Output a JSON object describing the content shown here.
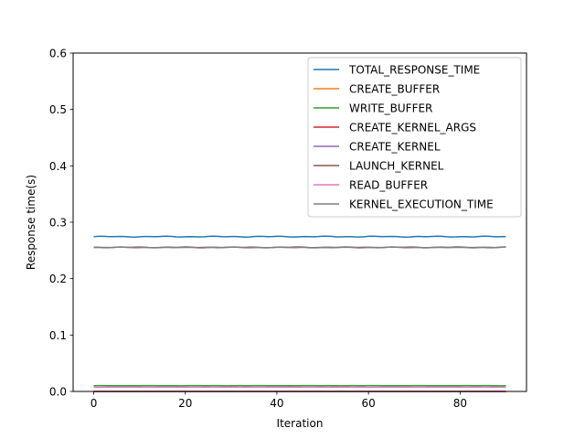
{
  "chart_data": {
    "type": "line",
    "title": "",
    "xlabel": "Iteration",
    "ylabel": "Response time(s)",
    "xlim": [
      -4.5,
      94.5
    ],
    "ylim": [
      0,
      0.6
    ],
    "x_ticks": [
      0,
      20,
      40,
      60,
      80
    ],
    "y_ticks": [
      0.0,
      0.1,
      0.2,
      0.3,
      0.4,
      0.5,
      0.6
    ],
    "x_tick_labels": [
      "0",
      "20",
      "40",
      "60",
      "80"
    ],
    "y_tick_labels": [
      "0.0",
      "0.1",
      "0.2",
      "0.3",
      "0.4",
      "0.5",
      "0.6"
    ],
    "grid": false,
    "legend_position": "top-right",
    "x_range": [
      0,
      90
    ],
    "series": [
      {
        "name": "TOTAL_RESPONSE_TIME",
        "color": "#1f77b4",
        "base": 0.2745,
        "wiggle": 0.0009
      },
      {
        "name": "CREATE_BUFFER",
        "color": "#ff7f0e",
        "base": 0.0001,
        "wiggle": 0
      },
      {
        "name": "WRITE_BUFFER",
        "color": "#2ca02c",
        "base": 0.0102,
        "wiggle": 0.0002
      },
      {
        "name": "CREATE_KERNEL_ARGS",
        "color": "#d62728",
        "base": 0.0001,
        "wiggle": 0
      },
      {
        "name": "CREATE_KERNEL",
        "color": "#9467bd",
        "base": 0.0001,
        "wiggle": 0
      },
      {
        "name": "LAUNCH_KERNEL",
        "color": "#8c564b",
        "base": 0.2555,
        "wiggle": 0.0008
      },
      {
        "name": "READ_BUFFER",
        "color": "#e377c2",
        "base": 0.0075,
        "wiggle": 0.0001
      },
      {
        "name": "KERNEL_EXECUTION_TIME",
        "color": "#7f7f7f",
        "base": 0.2553,
        "wiggle": 0.0008
      }
    ]
  }
}
